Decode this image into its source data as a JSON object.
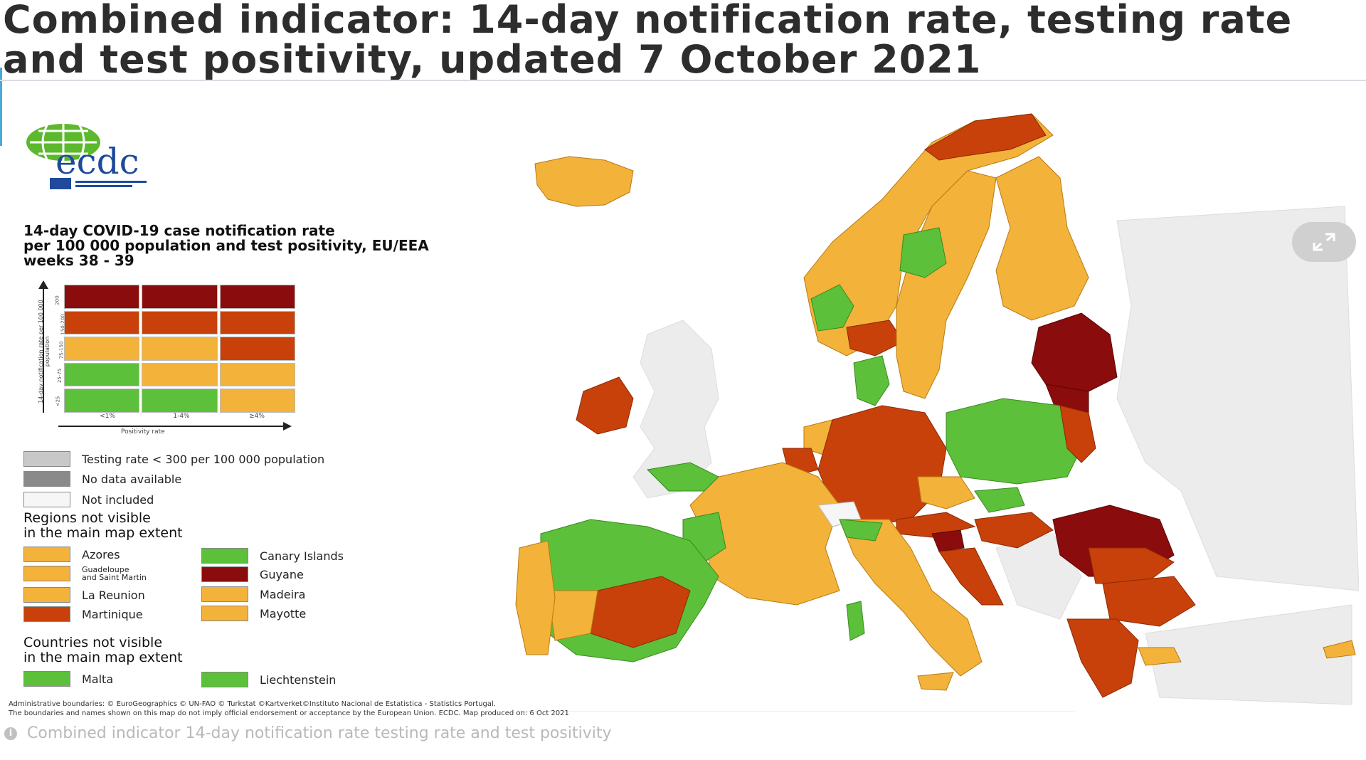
{
  "title": "Combined indicator: 14-day notification rate, testing rate and test positivity, updated 7 October 2021",
  "logo": {
    "text": "ecdc"
  },
  "legend": {
    "title": "14-day COVID-19 case notification rate\nper 100 000 population and test positivity, EU/EEA\nweeks 38 - 39",
    "y_axis_label": "14-day notification rate per 100 000 population",
    "y_ticks": [
      "200",
      "150-200",
      "75-150",
      "25-75",
      "<25"
    ],
    "x_axis_label": "Positivity rate",
    "x_ticks": [
      "<1%",
      "1-4%",
      "≥4%"
    ],
    "matrix_colors": [
      [
        "#8b0c0c",
        "#8b0c0c",
        "#8b0c0c"
      ],
      [
        "#c8410a",
        "#c8410a",
        "#c8410a"
      ],
      [
        "#f3b23a",
        "#f3b23a",
        "#c8410a"
      ],
      [
        "#5cc03a",
        "#f3b23a",
        "#f3b23a"
      ],
      [
        "#5cc03a",
        "#5cc03a",
        "#f3b23a"
      ]
    ],
    "status": [
      {
        "label": "Testing rate < 300 per 100 000 population",
        "color": "#c8c8c8"
      },
      {
        "label": "No data available",
        "color": "#8a8a8a"
      },
      {
        "label": "Not included",
        "color": "#f6f6f6"
      }
    ],
    "regions_head": "Regions not visible\nin the main map extent",
    "regions": [
      {
        "label": "Azores",
        "color": "#f3b23a"
      },
      {
        "label": "Canary Islands",
        "color": "#5cc03a"
      },
      {
        "label": "Guadeloupe\nand Saint Martin",
        "color": "#f3b23a"
      },
      {
        "label": "Guyane",
        "color": "#8b0c0c"
      },
      {
        "label": "La Reunion",
        "color": "#f3b23a"
      },
      {
        "label": "Madeira",
        "color": "#f3b23a"
      },
      {
        "label": "Martinique",
        "color": "#c8410a"
      },
      {
        "label": "Mayotte",
        "color": "#f3b23a"
      }
    ],
    "countries_head": "Countries not visible\nin the main map extent",
    "countries": [
      {
        "label": "Malta",
        "color": "#5cc03a"
      },
      {
        "label": "Liechtenstein",
        "color": "#5cc03a"
      }
    ]
  },
  "credits": "Administrative boundaries: © EuroGeographics © UN-FAO © Turkstat ©Kartverket©Instituto Nacional de Estatistica - Statistics Portugal.\nThe boundaries and names shown on this map do not imply official endorsement or acceptance by the European Union. ECDC. Map produced on: 6 Oct 2021",
  "caption": "Combined indicator  14-day notification rate  testing rate and test positivity",
  "colors": {
    "dark_red": "#8b0c0c",
    "red": "#c8410a",
    "orange": "#f3b23a",
    "green": "#5cc03a",
    "grey_land": "#ececec"
  }
}
